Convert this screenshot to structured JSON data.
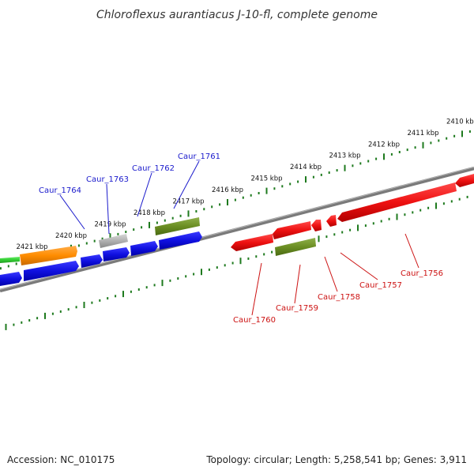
{
  "title": "Chloroflexus aurantiacus J-10-fl, complete genome",
  "footer": {
    "accession": "Accession: NC_010175",
    "summary": "Topology: circular; Length: 5,258,541 bp; Genes: 3,911"
  },
  "colors": {
    "backbone": "#7a7a7a",
    "tick": "#1e7a1e",
    "label_blue": "#1a1acc",
    "label_red": "#cc1111",
    "gene_blue": "#1010e0",
    "gene_red": "#ee1111",
    "gene_olive": "#6b8e23",
    "gene_orange": "#ff8c00",
    "gene_gray": "#b0b0b0",
    "gene_green": "#33cc33"
  },
  "scale_labels": [
    {
      "text": "2410 kbp",
      "kb": 2410
    },
    {
      "text": "2411 kbp",
      "kb": 2411
    },
    {
      "text": "2412 kbp",
      "kb": 2412
    },
    {
      "text": "2413 kbp",
      "kb": 2413
    },
    {
      "text": "2414 kbp",
      "kb": 2414
    },
    {
      "text": "2415 kbp",
      "kb": 2415
    },
    {
      "text": "2416 kbp",
      "kb": 2416
    },
    {
      "text": "2417 kbp",
      "kb": 2417
    },
    {
      "text": "2418 kbp",
      "kb": 2418
    },
    {
      "text": "2419 kbp",
      "kb": 2419
    },
    {
      "text": "2420 kbp",
      "kb": 2420
    },
    {
      "text": "2421 kbp",
      "kb": 2421
    }
  ],
  "gene_labels": [
    {
      "text": "Caur_1764",
      "strand": "upper"
    },
    {
      "text": "Caur_1763",
      "strand": "upper"
    },
    {
      "text": "Caur_1762",
      "strand": "upper"
    },
    {
      "text": "Caur_1761",
      "strand": "upper"
    },
    {
      "text": "Caur_1760",
      "strand": "lower"
    },
    {
      "text": "Caur_1759",
      "strand": "lower"
    },
    {
      "text": "Caur_1758",
      "strand": "lower"
    },
    {
      "text": "Caur_1757",
      "strand": "lower"
    },
    {
      "text": "Caur_1756",
      "strand": "lower"
    }
  ]
}
